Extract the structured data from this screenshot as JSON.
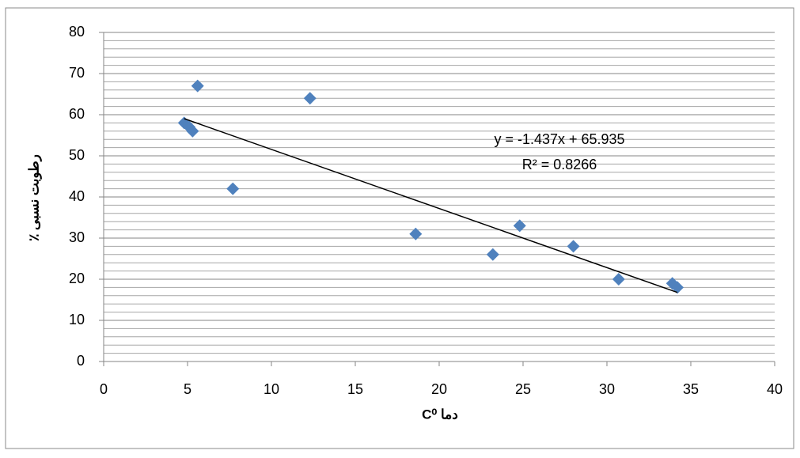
{
  "chart_data": {
    "type": "scatter",
    "x_label": "دما C⁰",
    "y_label": "رطوبت نسبی ٪",
    "x": [
      4.8,
      5.1,
      5.3,
      5.6,
      7.7,
      12.3,
      18.6,
      23.2,
      24.8,
      28.0,
      30.7,
      33.9,
      34.2
    ],
    "series": [
      {
        "color": "#4f81bd",
        "values": [
          58,
          57,
          56,
          67,
          42,
          64,
          31,
          26,
          33,
          28,
          20,
          19,
          18
        ]
      }
    ],
    "xlim": [
      0,
      40
    ],
    "xticks": [
      0,
      5,
      10,
      15,
      20,
      25,
      30,
      35,
      40
    ],
    "ylim": [
      0,
      80
    ],
    "yticks": [
      0,
      10,
      20,
      30,
      40,
      50,
      60,
      70,
      80
    ],
    "grid": true,
    "minor_grid_step": 2,
    "trendline": {
      "slope": -1.437,
      "intercept": 65.935,
      "r2": 0.8266,
      "label": "y = -1.437x + 65.935",
      "r2_label": "R² = 0.8266"
    }
  }
}
